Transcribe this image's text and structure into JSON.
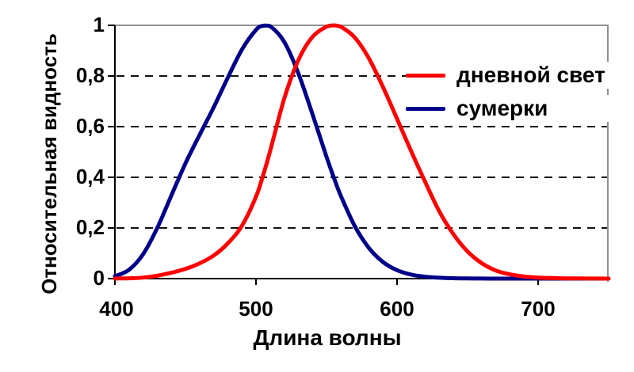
{
  "chart_data": {
    "type": "line",
    "title": "",
    "xlabel": "Длина волны",
    "ylabel": "Относительная видность",
    "xlim": [
      400,
      750
    ],
    "ylim": [
      0,
      1
    ],
    "x_ticks": [
      "400",
      "500",
      "600",
      "700"
    ],
    "x_tick_values": [
      400,
      500,
      600,
      700
    ],
    "y_ticks": [
      "0",
      "0,2",
      "0,4",
      "0,6",
      "0,8",
      "1"
    ],
    "y_tick_values": [
      0,
      0.2,
      0.4,
      0.6,
      0.8,
      1
    ],
    "grid": "horizontal dashed at 0.2/0.4/0.6/0.8, solid gray at 1.0 and right border",
    "legend_position": "inside top-right",
    "x": [
      400,
      410,
      420,
      430,
      440,
      450,
      460,
      470,
      480,
      490,
      500,
      505,
      510,
      520,
      530,
      540,
      550,
      555,
      560,
      570,
      580,
      590,
      600,
      610,
      620,
      630,
      640,
      650,
      660,
      670,
      680,
      690,
      700,
      710,
      720,
      730,
      740,
      750
    ],
    "series": [
      {
        "key": "daylight",
        "name": "дневной свет",
        "color": "#ff0000",
        "peak_nm": 555,
        "values": [
          0.0004,
          0.0012,
          0.004,
          0.0116,
          0.023,
          0.038,
          0.06,
          0.091,
          0.139,
          0.208,
          0.323,
          0.407,
          0.503,
          0.71,
          0.862,
          0.954,
          0.995,
          1.0,
          0.995,
          0.952,
          0.87,
          0.757,
          0.631,
          0.503,
          0.381,
          0.265,
          0.175,
          0.107,
          0.061,
          0.032,
          0.017,
          0.0082,
          0.0041,
          0.0021,
          0.001,
          0.0005,
          0.00025,
          0.0001
        ]
      },
      {
        "key": "twilight",
        "name": "сумерки",
        "color": "#000088",
        "peak_nm": 505,
        "values": [
          0.0093,
          0.0348,
          0.0966,
          0.1998,
          0.3281,
          0.455,
          0.567,
          0.676,
          0.793,
          0.904,
          0.982,
          0.998,
          0.997,
          0.935,
          0.811,
          0.65,
          0.481,
          0.402,
          0.3288,
          0.2076,
          0.1212,
          0.0655,
          0.0332,
          0.0159,
          0.0074,
          0.0033,
          0.0015,
          0.0007,
          0.0003,
          0.0001,
          0,
          0,
          0,
          0,
          0,
          0,
          0,
          0
        ]
      }
    ],
    "colors": {
      "axis": "#000000",
      "gridline": "#111111",
      "border_gray": "#909090",
      "text": "#000000",
      "background": "#ffffff"
    }
  }
}
